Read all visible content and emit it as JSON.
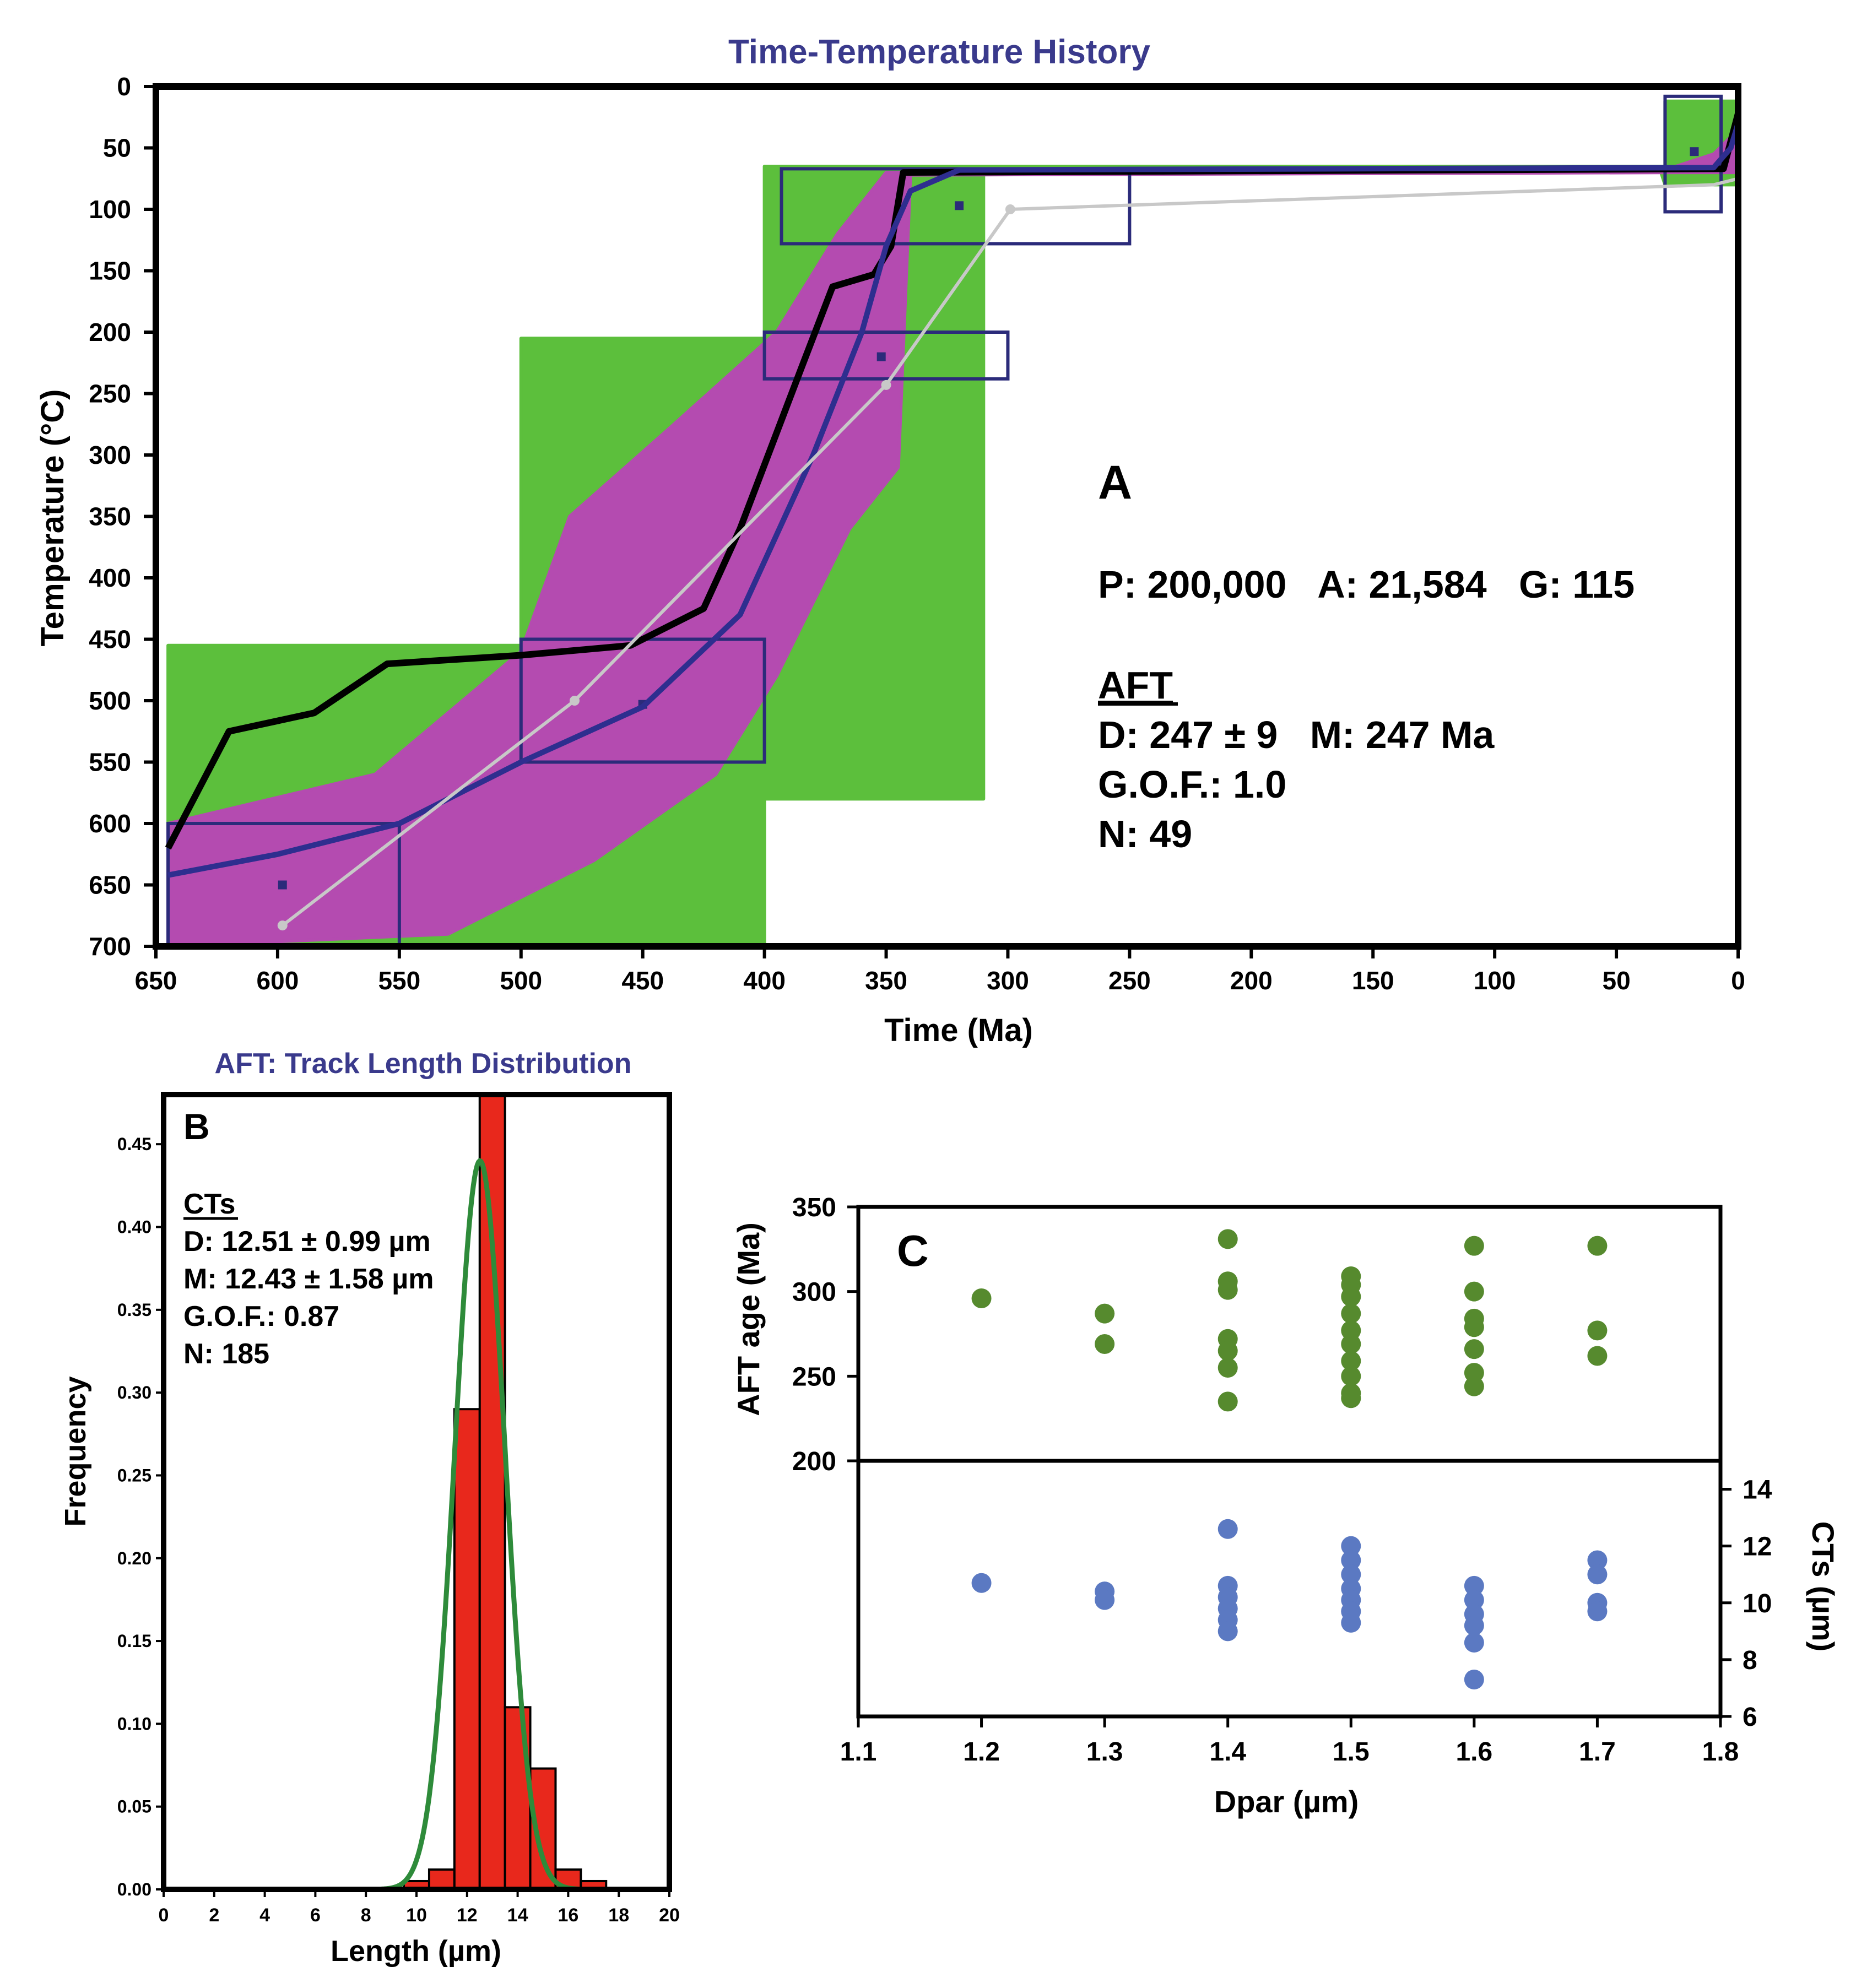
{
  "chart_data": [
    {
      "panel": "A",
      "type": "line",
      "title": "Time-Temperature History",
      "xlabel": "Time (Ma)",
      "ylabel": "Temperature (°C)",
      "xlim": [
        650,
        0
      ],
      "ylim": [
        0,
        700
      ],
      "y_reversed": true,
      "xticks": [
        "650",
        "600",
        "550",
        "500",
        "450",
        "400",
        "350",
        "300",
        "250",
        "200",
        "150",
        "100",
        "50",
        "0"
      ],
      "yticks": [
        "0",
        "50",
        "100",
        "150",
        "200",
        "250",
        "300",
        "350",
        "400",
        "450",
        "500",
        "550",
        "600",
        "650",
        "700"
      ],
      "constraint_boxes": [
        {
          "t": [
            645,
            550
          ],
          "T": [
            600,
            700
          ],
          "center": [
            598,
            650
          ]
        },
        {
          "t": [
            500,
            400
          ],
          "T": [
            450,
            550
          ],
          "center": [
            450,
            503
          ]
        },
        {
          "t": [
            400,
            300
          ],
          "T": [
            200,
            238
          ],
          "center": [
            352,
            220
          ]
        },
        {
          "t": [
            393,
            250
          ],
          "T": [
            67,
            128
          ],
          "center": [
            320,
            97
          ]
        },
        {
          "t": [
            30,
            7
          ],
          "T": [
            8,
            102
          ],
          "center": [
            18,
            53
          ]
        }
      ],
      "envelopes": [
        {
          "name": "acceptable",
          "color": "#5cbf3c",
          "upper": [
            [
              645,
              455
            ],
            [
              500,
              455
            ],
            [
              500,
              205
            ],
            [
              400,
              205
            ],
            [
              400,
              65
            ],
            [
              30,
              65
            ],
            [
              30,
              12
            ],
            [
              0,
              12
            ]
          ],
          "lower": [
            [
              0,
              80
            ],
            [
              30,
              80
            ],
            [
              32,
              68
            ],
            [
              310,
              68
            ],
            [
              310,
              580
            ],
            [
              400,
              580
            ],
            [
              400,
              700
            ],
            [
              645,
              700
            ]
          ]
        },
        {
          "name": "good",
          "color": "#b44bb0",
          "upper": [
            [
              645,
              600
            ],
            [
              560,
              560
            ],
            [
              500,
              460
            ],
            [
              480,
              350
            ],
            [
              440,
              280
            ],
            [
              395,
              200
            ],
            [
              370,
              120
            ],
            [
              350,
              70
            ],
            [
              30,
              68
            ],
            [
              10,
              55
            ],
            [
              0,
              35
            ]
          ],
          "lower": [
            [
              0,
              70
            ],
            [
              20,
              70
            ],
            [
              340,
              72
            ],
            [
              345,
              310
            ],
            [
              365,
              360
            ],
            [
              395,
              480
            ],
            [
              420,
              560
            ],
            [
              470,
              630
            ],
            [
              530,
              690
            ],
            [
              645,
              700
            ]
          ]
        }
      ],
      "series": [
        {
          "name": "",
          "color": "#000000",
          "points": [
            [
              645,
              620
            ],
            [
              620,
              525
            ],
            [
              585,
              510
            ],
            [
              555,
              470
            ],
            [
              500,
              463
            ],
            [
              455,
              455
            ],
            [
              425,
              425
            ],
            [
              410,
              360
            ],
            [
              385,
              230
            ],
            [
              372,
              163
            ],
            [
              355,
              153
            ],
            [
              348,
              130
            ],
            [
              343,
              70
            ],
            [
              6,
              67
            ],
            [
              0,
              22
            ]
          ]
        },
        {
          "name": "",
          "color": "#2e2e8f",
          "points": [
            [
              645,
              642
            ],
            [
              600,
              625
            ],
            [
              550,
              600
            ],
            [
              500,
              550
            ],
            [
              450,
              505
            ],
            [
              410,
              430
            ],
            [
              380,
              300
            ],
            [
              360,
              200
            ],
            [
              350,
              130
            ],
            [
              340,
              85
            ],
            [
              320,
              68
            ],
            [
              10,
              66
            ],
            [
              3,
              50
            ],
            [
              0,
              30
            ]
          ]
        },
        {
          "name": "",
          "color": "#c8c8c8",
          "points": [
            [
              598,
              683
            ],
            [
              478,
              500
            ],
            [
              350,
              243
            ],
            [
              299,
              100
            ],
            [
              10,
              80
            ],
            [
              0,
              75
            ]
          ]
        }
      ],
      "annotations": {
        "panel_label": "A",
        "stats_line": "P: 200,000   A: 21,584   G: 115",
        "aft_heading": "AFT",
        "aft_d_m": "D: 247 ± 9   M: 247 Ma",
        "aft_gof": "G.O.F.: 1.0",
        "aft_n": "N: 49"
      }
    },
    {
      "panel": "B",
      "type": "bar",
      "title": "AFT: Track Length Distribution",
      "xlabel": "Length (µm)",
      "ylabel": "Frequency",
      "xlim": [
        0,
        20
      ],
      "ylim": [
        0,
        0.48
      ],
      "xticks": [
        "0",
        "2",
        "4",
        "6",
        "8",
        "10",
        "12",
        "14",
        "16",
        "18",
        "20"
      ],
      "yticks": [
        "0.00",
        "0.05",
        "0.10",
        "0.15",
        "0.20",
        "0.25",
        "0.30",
        "0.35",
        "0.40",
        "0.45"
      ],
      "bins": [
        {
          "x0": 9.5,
          "x1": 10.5,
          "value": 0.005
        },
        {
          "x0": 10.5,
          "x1": 11.5,
          "value": 0.012
        },
        {
          "x0": 11.5,
          "x1": 12.5,
          "value": 0.29
        },
        {
          "x0": 12.5,
          "x1": 13.5,
          "value": 0.5
        },
        {
          "x0": 13.5,
          "x1": 14.5,
          "value": 0.11
        },
        {
          "x0": 14.5,
          "x1": 15.5,
          "value": 0.073
        },
        {
          "x0": 15.5,
          "x1": 16.5,
          "value": 0.012
        },
        {
          "x0": 16.5,
          "x1": 17.5,
          "value": 0.005
        }
      ],
      "bar_color": "#e8281c",
      "fit_curve": {
        "color": "#2e8b3a",
        "mean": 12.51,
        "sd": 0.99,
        "peak": 0.44
      },
      "annotations": {
        "panel_label": "B",
        "cts_heading": "CTs",
        "d_line": "D: 12.51 ± 0.99 µm",
        "m_line": "M: 12.43 ± 1.58 µm",
        "gof_line": "G.O.F.: 0.87",
        "n_line": "N: 185"
      }
    },
    {
      "panel": "C",
      "type": "scatter",
      "xlabel": "Dpar (µm)",
      "xlim": [
        1.1,
        1.8
      ],
      "xticks": [
        "1.1",
        "1.2",
        "1.3",
        "1.4",
        "1.5",
        "1.6",
        "1.7",
        "1.8"
      ],
      "top": {
        "ylabel": "AFT age (Ma)",
        "ylim": [
          200,
          350
        ],
        "yticks": [
          "200",
          "250",
          "300",
          "350"
        ],
        "color": "#568a2e",
        "points": [
          [
            1.2,
            296
          ],
          [
            1.3,
            287
          ],
          [
            1.3,
            269
          ],
          [
            1.4,
            331
          ],
          [
            1.4,
            306
          ],
          [
            1.4,
            301
          ],
          [
            1.4,
            272
          ],
          [
            1.4,
            265
          ],
          [
            1.4,
            255
          ],
          [
            1.4,
            235
          ],
          [
            1.5,
            309
          ],
          [
            1.5,
            304
          ],
          [
            1.5,
            297
          ],
          [
            1.5,
            287
          ],
          [
            1.5,
            277
          ],
          [
            1.5,
            269
          ],
          [
            1.5,
            259
          ],
          [
            1.5,
            250
          ],
          [
            1.5,
            240
          ],
          [
            1.5,
            237
          ],
          [
            1.6,
            327
          ],
          [
            1.6,
            300
          ],
          [
            1.6,
            284
          ],
          [
            1.6,
            279
          ],
          [
            1.6,
            266
          ],
          [
            1.6,
            252
          ],
          [
            1.6,
            244
          ],
          [
            1.7,
            327
          ],
          [
            1.7,
            277
          ],
          [
            1.7,
            262
          ]
        ]
      },
      "bottom": {
        "ylabel": "CTs (µm)",
        "ylim": [
          6,
          15
        ],
        "yticks": [
          "6",
          "8",
          "10",
          "12",
          "14"
        ],
        "color": "#5b79c2",
        "points": [
          [
            1.2,
            10.7
          ],
          [
            1.3,
            10.4
          ],
          [
            1.3,
            10.1
          ],
          [
            1.4,
            12.6
          ],
          [
            1.4,
            10.6
          ],
          [
            1.4,
            10.2
          ],
          [
            1.4,
            9.8
          ],
          [
            1.4,
            9.4
          ],
          [
            1.4,
            9.0
          ],
          [
            1.5,
            12.0
          ],
          [
            1.5,
            11.5
          ],
          [
            1.5,
            11.0
          ],
          [
            1.5,
            10.5
          ],
          [
            1.5,
            10.1
          ],
          [
            1.5,
            9.7
          ],
          [
            1.5,
            9.3
          ],
          [
            1.6,
            10.6
          ],
          [
            1.6,
            10.1
          ],
          [
            1.6,
            9.6
          ],
          [
            1.6,
            9.2
          ],
          [
            1.6,
            8.6
          ],
          [
            1.6,
            7.3
          ],
          [
            1.7,
            11.5
          ],
          [
            1.7,
            11.0
          ],
          [
            1.7,
            10.0
          ],
          [
            1.7,
            9.7
          ]
        ]
      },
      "annotations": {
        "panel_label": "C"
      }
    }
  ]
}
